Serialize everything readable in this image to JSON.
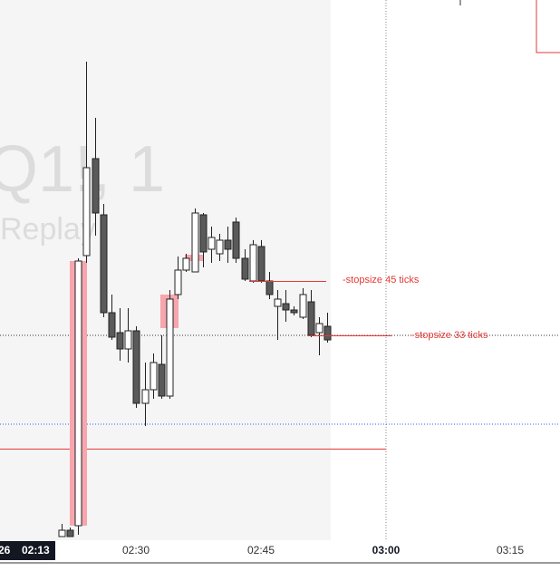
{
  "chart_data": {
    "type": "candlestick",
    "watermark": "Q1!, 1",
    "watermark_sub": "Replay",
    "x_labels": [
      "26",
      "02:13",
      "02:30",
      "02:45",
      "03:00",
      "03:15"
    ],
    "annotations": [
      "-stopsize 45 ticks",
      "-stopsize 33 ticks"
    ],
    "open": [
      38,
      45,
      50,
      348,
      455,
      393,
      285,
      263,
      245,
      265,
      185,
      200,
      228,
      193,
      305,
      332,
      330,
      393,
      355,
      350,
      365,
      385,
      345,
      320,
      358,
      320,
      292,
      295,
      288,
      280,
      297,
      263,
      270
    ],
    "high": [
      52,
      48,
      345,
      562,
      500,
      405,
      305,
      290,
      290,
      270,
      230,
      240,
      260,
      310,
      347,
      350,
      400,
      395,
      380,
      372,
      380,
      390,
      355,
      365,
      365,
      330,
      310,
      310,
      292,
      312,
      310,
      280,
      285
    ],
    "low": [
      38,
      38,
      40,
      340,
      370,
      280,
      255,
      232,
      230,
      180,
      160,
      190,
      190,
      190,
      300,
      330,
      330,
      335,
      340,
      342,
      340,
      340,
      320,
      318,
      318,
      300,
      255,
      275,
      282,
      278,
      258,
      238,
      252
    ],
    "close": [
      45,
      38,
      342,
      445,
      395,
      285,
      258,
      245,
      265,
      185,
      200,
      230,
      193,
      300,
      332,
      345,
      395,
      352,
      368,
      365,
      355,
      345,
      322,
      360,
      320,
      305,
      300,
      288,
      285,
      305,
      260,
      273,
      255
    ],
    "ylim": [
      0,
      630
    ],
    "up_color": "#ffffff",
    "down_color": "#5a5a5a"
  }
}
